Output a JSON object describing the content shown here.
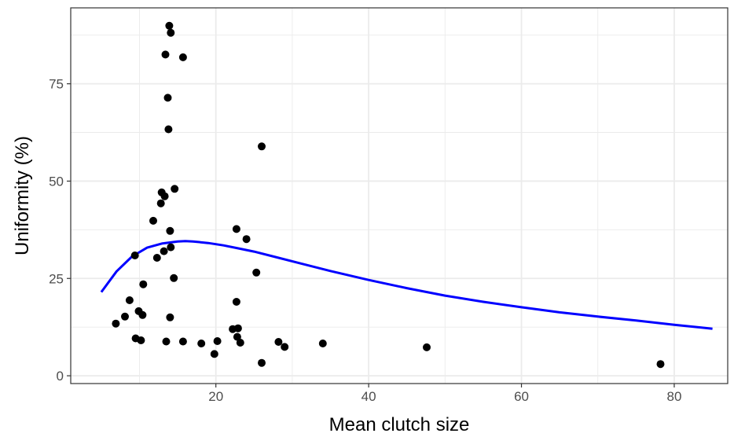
{
  "chart_data": {
    "type": "scatter",
    "title": "",
    "xlabel": "Mean clutch size",
    "ylabel": "Uniformity (%)",
    "xlim": [
      1,
      87
    ],
    "ylim": [
      -2,
      94.5
    ],
    "x_ticks": [
      20,
      40,
      60,
      80
    ],
    "x_minor_ticks": [
      10,
      30,
      50,
      70
    ],
    "y_ticks": [
      0,
      25,
      50,
      75
    ],
    "y_minor_ticks": [
      12.5,
      37.5,
      62.5,
      87.5
    ],
    "grid": true,
    "legend": "none",
    "colors": {
      "points": "#000000",
      "curve": "#0000ff",
      "grid": "#ebebeb",
      "border": "#333333"
    },
    "points": [
      {
        "x": 13.9,
        "y": 89.9
      },
      {
        "x": 14.1,
        "y": 88.1
      },
      {
        "x": 13.4,
        "y": 82.5
      },
      {
        "x": 15.7,
        "y": 81.8
      },
      {
        "x": 13.7,
        "y": 71.4
      },
      {
        "x": 13.8,
        "y": 63.3
      },
      {
        "x": 26.0,
        "y": 58.9
      },
      {
        "x": 14.6,
        "y": 48.0
      },
      {
        "x": 12.9,
        "y": 47.1
      },
      {
        "x": 13.3,
        "y": 46.1
      },
      {
        "x": 12.8,
        "y": 44.3
      },
      {
        "x": 11.8,
        "y": 39.8
      },
      {
        "x": 22.7,
        "y": 37.7
      },
      {
        "x": 14.0,
        "y": 37.2
      },
      {
        "x": 24.0,
        "y": 35.1
      },
      {
        "x": 14.1,
        "y": 33.0
      },
      {
        "x": 13.2,
        "y": 32.0
      },
      {
        "x": 9.4,
        "y": 30.9
      },
      {
        "x": 12.3,
        "y": 30.3
      },
      {
        "x": 25.3,
        "y": 26.5
      },
      {
        "x": 14.5,
        "y": 25.1
      },
      {
        "x": 10.5,
        "y": 23.5
      },
      {
        "x": 8.7,
        "y": 19.4
      },
      {
        "x": 22.7,
        "y": 19.0
      },
      {
        "x": 9.9,
        "y": 16.6
      },
      {
        "x": 10.4,
        "y": 15.6
      },
      {
        "x": 8.1,
        "y": 15.2
      },
      {
        "x": 14.0,
        "y": 15.0
      },
      {
        "x": 6.9,
        "y": 13.4
      },
      {
        "x": 22.2,
        "y": 12.0
      },
      {
        "x": 22.9,
        "y": 12.2
      },
      {
        "x": 22.8,
        "y": 10.0
      },
      {
        "x": 9.5,
        "y": 9.6
      },
      {
        "x": 10.2,
        "y": 9.1
      },
      {
        "x": 20.2,
        "y": 8.9
      },
      {
        "x": 13.5,
        "y": 8.8
      },
      {
        "x": 15.7,
        "y": 8.8
      },
      {
        "x": 18.1,
        "y": 8.3
      },
      {
        "x": 23.2,
        "y": 8.5
      },
      {
        "x": 28.2,
        "y": 8.7
      },
      {
        "x": 34.0,
        "y": 8.3
      },
      {
        "x": 29.0,
        "y": 7.4
      },
      {
        "x": 47.6,
        "y": 7.3
      },
      {
        "x": 19.8,
        "y": 5.6
      },
      {
        "x": 26.0,
        "y": 3.3
      },
      {
        "x": 78.2,
        "y": 3.0
      }
    ],
    "fit_curve": {
      "x": [
        5,
        7,
        9,
        11,
        13,
        15,
        16,
        17,
        19,
        21,
        23,
        25,
        28,
        31,
        35,
        40,
        45,
        50,
        55,
        60,
        65,
        70,
        75,
        80,
        85
      ],
      "y": [
        21.5,
        26.8,
        30.6,
        32.9,
        34.0,
        34.5,
        34.6,
        34.5,
        34.1,
        33.5,
        32.7,
        31.9,
        30.4,
        28.9,
        26.9,
        24.6,
        22.5,
        20.6,
        19.0,
        17.6,
        16.3,
        15.2,
        14.2,
        13.1,
        12.1
      ]
    }
  }
}
